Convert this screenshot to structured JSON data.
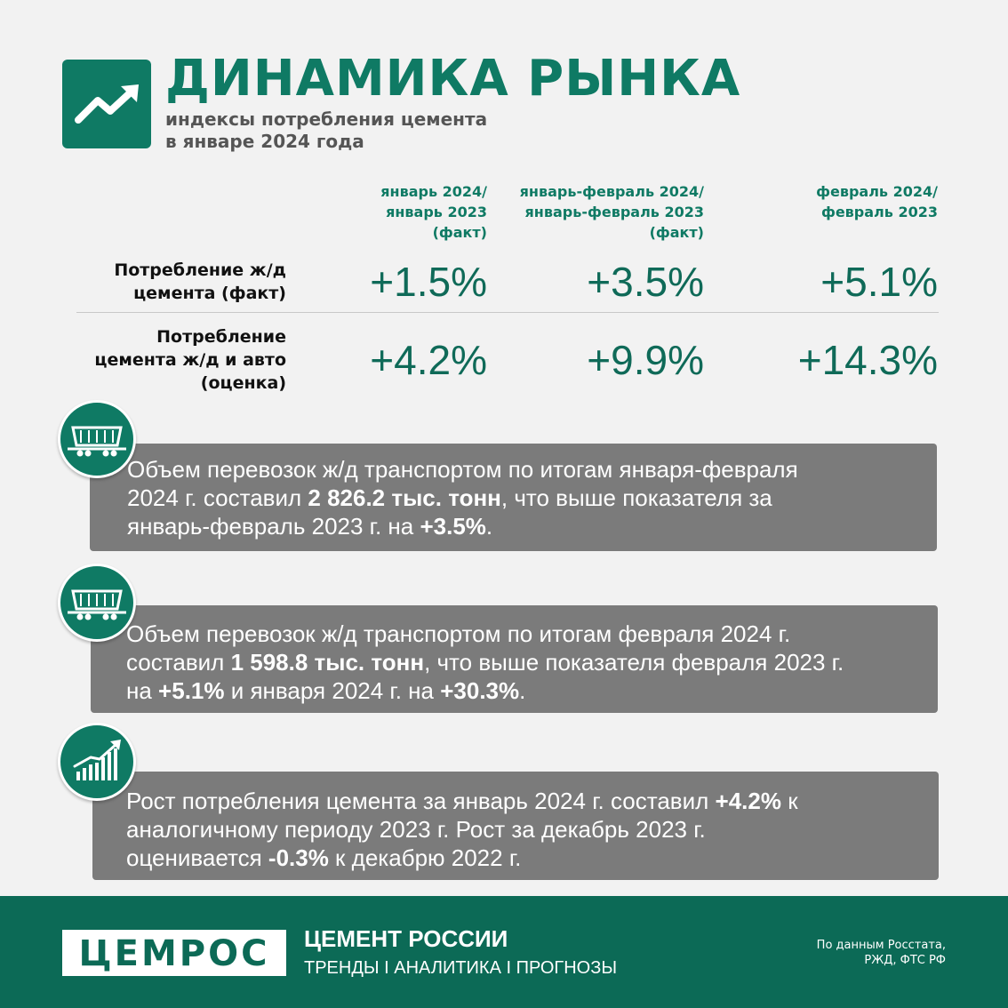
{
  "header": {
    "title": "ДИНАМИКА РЫНКА",
    "subtitle_line1": "индексы потребления цемента",
    "subtitle_line2": "в январе 2024 года",
    "icon": "trend-up-arrow-icon"
  },
  "table": {
    "columns": [
      {
        "l1": "январь 2024/",
        "l2": "январь 2023",
        "l3": "(факт)"
      },
      {
        "l1": "январь-февраль 2024/",
        "l2": "январь-февраль 2023",
        "l3": "(факт)"
      },
      {
        "l1": "февраль 2024/",
        "l2": "февраль 2023",
        "l3": ""
      }
    ],
    "rows": [
      {
        "l1": "Потребление ж/д",
        "l2": "цемента (факт)",
        "l3": "",
        "values": [
          "+1.5%",
          "+3.5%",
          "+5.1%"
        ]
      },
      {
        "l1": "Потребление",
        "l2": "цемента ж/д и авто",
        "l3": "(оценка)",
        "values": [
          "+4.2%",
          "+9.9%",
          "+14.3%"
        ]
      }
    ]
  },
  "cards": [
    {
      "icon": "railcar-icon",
      "line1": "Объем перевозок ж/д транспортом по итогам января-февраля",
      "line2_pre": "2024 г. составил ",
      "line2_bold": "2 826.2 тыс. тонн",
      "line2_post": ", что выше показателя за",
      "line3_pre": "январь-февраль 2023 г. на ",
      "line3_bold": "+3.5%",
      "line3_post": "."
    },
    {
      "icon": "railcar-icon",
      "line1": "Объем перевозок ж/д транспортом по итогам февраля 2024 г.",
      "line2_pre": "составил ",
      "line2_bold": "1 598.8 тыс. тонн",
      "line2_post": ", что выше показателя февраля 2023 г.",
      "line3_pre": "на ",
      "line3_bold": "+5.1%",
      "line3_mid": " и января 2024 г. на ",
      "line3_bold2": "+30.3%",
      "line3_post": "."
    },
    {
      "icon": "growth-chart-icon",
      "line1_pre": "Рост потребления цемента за январь 2024 г. составил ",
      "line1_bold": "+4.2%",
      "line1_post": " к",
      "line2": "аналогичному периоду 2023 г. Рост за декабрь 2023 г.",
      "line3_pre": "оценивается ",
      "line3_bold": "-0.3%",
      "line3_post": " к декабрю 2022 г."
    }
  ],
  "footer": {
    "brand": "ЦЕМРОС",
    "title": "ЦЕМЕНТ РОССИИ",
    "subtitle": "ТРЕНДЫ I АНАЛИТИКА I ПРОГНОЗЫ",
    "source_line1": "По данным Росстата,",
    "source_line2": "РЖД, ФТС РФ"
  },
  "colors": {
    "brand_green": "#0f7a64",
    "card_gray": "#7b7b7b",
    "footer_green": "#0c6a56",
    "background": "#f2f2f2"
  }
}
